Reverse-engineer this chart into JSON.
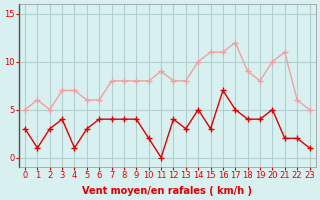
{
  "x": [
    0,
    1,
    2,
    3,
    4,
    5,
    6,
    7,
    8,
    9,
    10,
    11,
    12,
    13,
    14,
    15,
    16,
    17,
    18,
    19,
    20,
    21,
    22,
    23
  ],
  "wind_avg": [
    3,
    1,
    3,
    4,
    1,
    3,
    4,
    4,
    4,
    4,
    2,
    0,
    4,
    3,
    5,
    3,
    7,
    5,
    4,
    4,
    5,
    2,
    2,
    1
  ],
  "wind_gust": [
    5,
    6,
    5,
    7,
    7,
    6,
    6,
    8,
    8,
    8,
    8,
    9,
    8,
    8,
    10,
    11,
    11,
    12,
    9,
    8,
    10,
    11,
    6,
    5
  ],
  "avg_color": "#e00000",
  "gust_color": "#f0a0a0",
  "bg_color": "#d8f0f0",
  "grid_color": "#b0d0d0",
  "xlabel": "Vent moyen/en rafales ( km/h )",
  "ylabel": "",
  "ylim": [
    -1,
    16
  ],
  "yticks": [
    0,
    5,
    10,
    15
  ],
  "xticks": [
    0,
    1,
    2,
    3,
    4,
    5,
    6,
    7,
    8,
    9,
    10,
    11,
    12,
    13,
    14,
    15,
    16,
    17,
    18,
    19,
    20,
    21,
    22,
    23
  ],
  "xlabel_color": "#e00000",
  "tick_color": "#e00000",
  "axis_label_fontsize": 7,
  "tick_fontsize": 6
}
